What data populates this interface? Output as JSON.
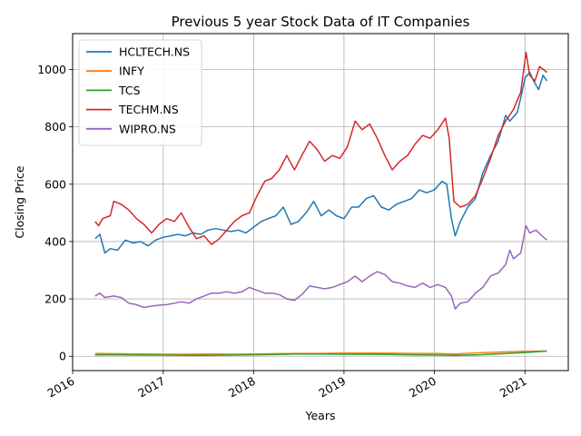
{
  "chart_data": {
    "type": "line",
    "title": "Previous 5 year Stock Data of IT Companies",
    "xlabel": "Years",
    "ylabel": "Closing Price",
    "xlim": [
      "2016-01-01",
      "2021-06-25"
    ],
    "ylim": [
      -50,
      1125
    ],
    "x_ticks": [
      "2016",
      "2017",
      "2018",
      "2019",
      "2020",
      "2021"
    ],
    "y_ticks": [
      0,
      200,
      400,
      600,
      800,
      1000
    ],
    "grid": true,
    "legend": "top-left",
    "series": [
      {
        "name": "HCLTECH.NS",
        "color": "#1f77b4",
        "points": [
          [
            "2016-04-01",
            410
          ],
          [
            "2016-04-20",
            425
          ],
          [
            "2016-05-10",
            360
          ],
          [
            "2016-06-01",
            375
          ],
          [
            "2016-07-01",
            370
          ],
          [
            "2016-08-01",
            405
          ],
          [
            "2016-09-01",
            395
          ],
          [
            "2016-10-01",
            400
          ],
          [
            "2016-11-01",
            385
          ],
          [
            "2016-12-01",
            405
          ],
          [
            "2017-01-01",
            415
          ],
          [
            "2017-02-01",
            420
          ],
          [
            "2017-03-01",
            425
          ],
          [
            "2017-04-01",
            420
          ],
          [
            "2017-05-01",
            430
          ],
          [
            "2017-06-01",
            425
          ],
          [
            "2017-07-01",
            440
          ],
          [
            "2017-08-01",
            445
          ],
          [
            "2017-09-01",
            440
          ],
          [
            "2017-10-01",
            435
          ],
          [
            "2017-11-01",
            440
          ],
          [
            "2017-12-01",
            430
          ],
          [
            "2018-01-01",
            450
          ],
          [
            "2018-02-01",
            470
          ],
          [
            "2018-03-01",
            480
          ],
          [
            "2018-04-01",
            490
          ],
          [
            "2018-05-01",
            520
          ],
          [
            "2018-06-01",
            460
          ],
          [
            "2018-07-01",
            470
          ],
          [
            "2018-08-01",
            500
          ],
          [
            "2018-09-01",
            540
          ],
          [
            "2018-10-01",
            490
          ],
          [
            "2018-11-01",
            510
          ],
          [
            "2018-12-01",
            490
          ],
          [
            "2019-01-01",
            480
          ],
          [
            "2019-02-01",
            520
          ],
          [
            "2019-03-01",
            520
          ],
          [
            "2019-04-01",
            550
          ],
          [
            "2019-05-01",
            560
          ],
          [
            "2019-06-01",
            520
          ],
          [
            "2019-07-01",
            510
          ],
          [
            "2019-08-01",
            530
          ],
          [
            "2019-09-01",
            540
          ],
          [
            "2019-10-01",
            550
          ],
          [
            "2019-11-01",
            580
          ],
          [
            "2019-12-01",
            570
          ],
          [
            "2020-01-01",
            580
          ],
          [
            "2020-02-01",
            610
          ],
          [
            "2020-02-20",
            600
          ],
          [
            "2020-03-10",
            480
          ],
          [
            "2020-03-25",
            420
          ],
          [
            "2020-04-15",
            470
          ],
          [
            "2020-05-15",
            520
          ],
          [
            "2020-06-15",
            550
          ],
          [
            "2020-07-15",
            640
          ],
          [
            "2020-08-15",
            700
          ],
          [
            "2020-09-15",
            750
          ],
          [
            "2020-10-15",
            840
          ],
          [
            "2020-11-01",
            820
          ],
          [
            "2020-12-01",
            850
          ],
          [
            "2020-12-15",
            900
          ],
          [
            "2021-01-01",
            970
          ],
          [
            "2021-01-20",
            990
          ],
          [
            "2021-02-05",
            960
          ],
          [
            "2021-02-25",
            930
          ],
          [
            "2021-03-15",
            980
          ],
          [
            "2021-03-31",
            960
          ]
        ]
      },
      {
        "name": "INFY",
        "color": "#ff7f0e",
        "points": [
          [
            "2016-04-01",
            10
          ],
          [
            "2016-07-01",
            9
          ],
          [
            "2016-10-01",
            8
          ],
          [
            "2017-01-01",
            7
          ],
          [
            "2017-04-01",
            7
          ],
          [
            "2017-07-01",
            8
          ],
          [
            "2017-10-01",
            7
          ],
          [
            "2018-01-01",
            8
          ],
          [
            "2018-04-01",
            9
          ],
          [
            "2018-07-01",
            10
          ],
          [
            "2018-10-01",
            10
          ],
          [
            "2019-01-01",
            11
          ],
          [
            "2019-04-01",
            11
          ],
          [
            "2019-07-01",
            11
          ],
          [
            "2019-10-01",
            10
          ],
          [
            "2020-01-01",
            10
          ],
          [
            "2020-03-25",
            8
          ],
          [
            "2020-07-01",
            12
          ],
          [
            "2020-10-01",
            15
          ],
          [
            "2021-01-01",
            17
          ],
          [
            "2021-03-31",
            18
          ]
        ]
      },
      {
        "name": "TCS",
        "color": "#2ca02c",
        "points": [
          [
            "2016-04-01",
            5
          ],
          [
            "2016-07-01",
            5
          ],
          [
            "2016-10-01",
            4
          ],
          [
            "2017-01-01",
            4
          ],
          [
            "2017-04-01",
            3
          ],
          [
            "2017-07-01",
            3
          ],
          [
            "2017-10-01",
            4
          ],
          [
            "2018-01-01",
            5
          ],
          [
            "2018-04-01",
            6
          ],
          [
            "2018-07-01",
            8
          ],
          [
            "2018-10-01",
            8
          ],
          [
            "2019-01-01",
            7
          ],
          [
            "2019-04-01",
            7
          ],
          [
            "2019-07-01",
            6
          ],
          [
            "2019-10-01",
            5
          ],
          [
            "2020-01-01",
            4
          ],
          [
            "2020-03-25",
            3
          ],
          [
            "2020-07-01",
            5
          ],
          [
            "2020-10-01",
            9
          ],
          [
            "2021-01-01",
            13
          ],
          [
            "2021-03-31",
            18
          ]
        ]
      },
      {
        "name": "TECHM.NS",
        "color": "#d62728",
        "points": [
          [
            "2016-04-01",
            470
          ],
          [
            "2016-04-15",
            455
          ],
          [
            "2016-05-01",
            480
          ],
          [
            "2016-06-01",
            490
          ],
          [
            "2016-06-15",
            540
          ],
          [
            "2016-07-15",
            530
          ],
          [
            "2016-08-15",
            510
          ],
          [
            "2016-09-15",
            480
          ],
          [
            "2016-10-15",
            460
          ],
          [
            "2016-11-15",
            430
          ],
          [
            "2016-12-15",
            460
          ],
          [
            "2017-01-15",
            480
          ],
          [
            "2017-02-15",
            470
          ],
          [
            "2017-03-15",
            500
          ],
          [
            "2017-04-15",
            450
          ],
          [
            "2017-05-15",
            410
          ],
          [
            "2017-06-15",
            420
          ],
          [
            "2017-07-15",
            390
          ],
          [
            "2017-08-15",
            410
          ],
          [
            "2017-09-15",
            440
          ],
          [
            "2017-10-15",
            470
          ],
          [
            "2017-11-15",
            490
          ],
          [
            "2017-12-15",
            500
          ],
          [
            "2018-01-15",
            560
          ],
          [
            "2018-02-15",
            610
          ],
          [
            "2018-03-15",
            620
          ],
          [
            "2018-04-15",
            650
          ],
          [
            "2018-05-15",
            700
          ],
          [
            "2018-06-15",
            650
          ],
          [
            "2018-07-15",
            700
          ],
          [
            "2018-08-15",
            750
          ],
          [
            "2018-09-15",
            720
          ],
          [
            "2018-10-15",
            680
          ],
          [
            "2018-11-15",
            700
          ],
          [
            "2018-12-15",
            690
          ],
          [
            "2019-01-15",
            730
          ],
          [
            "2019-02-15",
            820
          ],
          [
            "2019-03-15",
            790
          ],
          [
            "2019-04-15",
            810
          ],
          [
            "2019-05-15",
            760
          ],
          [
            "2019-06-15",
            700
          ],
          [
            "2019-07-15",
            650
          ],
          [
            "2019-08-15",
            680
          ],
          [
            "2019-09-15",
            700
          ],
          [
            "2019-10-15",
            740
          ],
          [
            "2019-11-15",
            770
          ],
          [
            "2019-12-15",
            760
          ],
          [
            "2020-01-15",
            790
          ],
          [
            "2020-02-15",
            830
          ],
          [
            "2020-03-01",
            760
          ],
          [
            "2020-03-20",
            540
          ],
          [
            "2020-04-15",
            520
          ],
          [
            "2020-05-15",
            530
          ],
          [
            "2020-06-15",
            560
          ],
          [
            "2020-07-15",
            620
          ],
          [
            "2020-08-15",
            690
          ],
          [
            "2020-09-15",
            770
          ],
          [
            "2020-10-15",
            820
          ],
          [
            "2020-11-15",
            860
          ],
          [
            "2020-12-15",
            920
          ],
          [
            "2021-01-05",
            1060
          ],
          [
            "2021-01-20",
            980
          ],
          [
            "2021-02-10",
            960
          ],
          [
            "2021-03-01",
            1010
          ],
          [
            "2021-03-31",
            990
          ]
        ]
      },
      {
        "name": "WIPRO.NS",
        "color": "#9467bd",
        "points": [
          [
            "2016-04-01",
            210
          ],
          [
            "2016-04-20",
            220
          ],
          [
            "2016-05-10",
            205
          ],
          [
            "2016-06-15",
            210
          ],
          [
            "2016-07-15",
            205
          ],
          [
            "2016-08-15",
            185
          ],
          [
            "2016-09-15",
            180
          ],
          [
            "2016-10-15",
            170
          ],
          [
            "2016-11-15",
            175
          ],
          [
            "2016-12-15",
            178
          ],
          [
            "2017-01-15",
            180
          ],
          [
            "2017-02-15",
            185
          ],
          [
            "2017-03-15",
            190
          ],
          [
            "2017-04-15",
            185
          ],
          [
            "2017-05-15",
            200
          ],
          [
            "2017-06-15",
            210
          ],
          [
            "2017-07-15",
            220
          ],
          [
            "2017-08-15",
            220
          ],
          [
            "2017-09-15",
            225
          ],
          [
            "2017-10-15",
            220
          ],
          [
            "2017-11-15",
            225
          ],
          [
            "2017-12-15",
            240
          ],
          [
            "2018-01-15",
            230
          ],
          [
            "2018-02-15",
            220
          ],
          [
            "2018-03-15",
            220
          ],
          [
            "2018-04-15",
            215
          ],
          [
            "2018-05-15",
            200
          ],
          [
            "2018-06-15",
            195
          ],
          [
            "2018-07-15",
            215
          ],
          [
            "2018-08-15",
            245
          ],
          [
            "2018-09-15",
            240
          ],
          [
            "2018-10-15",
            235
          ],
          [
            "2018-11-15",
            240
          ],
          [
            "2018-12-15",
            250
          ],
          [
            "2019-01-15",
            260
          ],
          [
            "2019-02-15",
            280
          ],
          [
            "2019-03-15",
            260
          ],
          [
            "2019-04-15",
            280
          ],
          [
            "2019-05-15",
            295
          ],
          [
            "2019-06-15",
            285
          ],
          [
            "2019-07-15",
            260
          ],
          [
            "2019-08-15",
            255
          ],
          [
            "2019-09-15",
            245
          ],
          [
            "2019-10-15",
            240
          ],
          [
            "2019-11-15",
            255
          ],
          [
            "2019-12-15",
            240
          ],
          [
            "2020-01-15",
            250
          ],
          [
            "2020-02-15",
            240
          ],
          [
            "2020-03-10",
            210
          ],
          [
            "2020-03-25",
            165
          ],
          [
            "2020-04-15",
            185
          ],
          [
            "2020-05-15",
            190
          ],
          [
            "2020-06-15",
            220
          ],
          [
            "2020-07-15",
            240
          ],
          [
            "2020-08-15",
            280
          ],
          [
            "2020-09-15",
            290
          ],
          [
            "2020-10-15",
            320
          ],
          [
            "2020-11-01",
            370
          ],
          [
            "2020-11-15",
            340
          ],
          [
            "2020-12-15",
            360
          ],
          [
            "2021-01-05",
            455
          ],
          [
            "2021-01-20",
            430
          ],
          [
            "2021-02-15",
            440
          ],
          [
            "2021-03-10",
            420
          ],
          [
            "2021-03-31",
            405
          ]
        ]
      }
    ]
  }
}
